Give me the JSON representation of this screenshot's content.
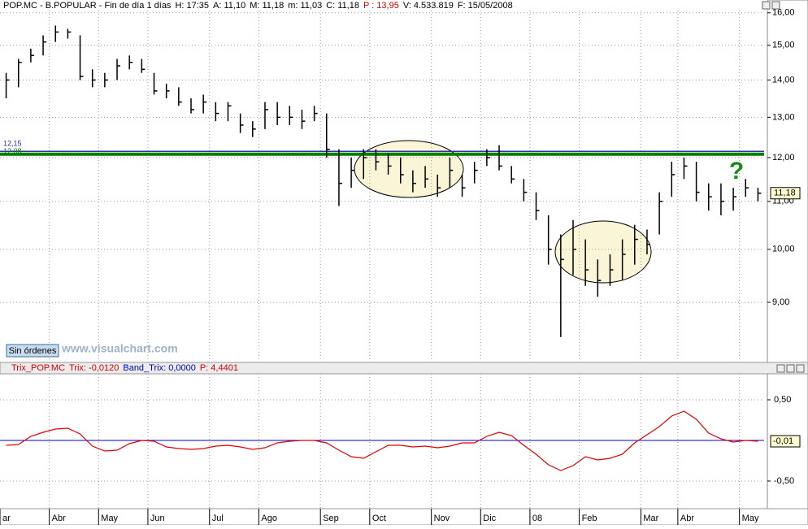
{
  "chart_data": [
    {
      "type": "ohlc",
      "header": [
        "POP.MC - B.POPULAR - Fin de día 1 días",
        "H: 17:35",
        "A: 11,10",
        "M: 11,18",
        "m: 11,03",
        "C: 11,18",
        "P : 13,95",
        "V: 4.533.819",
        "F: 15/05/2008"
      ],
      "categories": [
        "ar",
        null,
        null,
        null,
        "Abr",
        null,
        null,
        null,
        "May",
        null,
        null,
        null,
        "Jun",
        null,
        null,
        null,
        null,
        "Jul",
        null,
        null,
        null,
        "Ago",
        null,
        null,
        null,
        null,
        "Sep",
        null,
        null,
        null,
        "Oct",
        null,
        null,
        null,
        null,
        "Nov",
        null,
        null,
        null,
        "Dic",
        null,
        null,
        null,
        "08",
        null,
        null,
        null,
        "Feb",
        null,
        null,
        null,
        null,
        "Mar",
        null,
        null,
        "Abr",
        null,
        null,
        null,
        null,
        "May",
        null
      ],
      "highs": [
        14.2,
        14.6,
        14.9,
        15.3,
        15.6,
        15.5,
        15.3,
        14.3,
        14.2,
        14.6,
        14.7,
        14.6,
        14.2,
        13.9,
        13.8,
        13.5,
        13.6,
        13.4,
        13.4,
        13.1,
        12.9,
        13.4,
        13.4,
        13.3,
        13.2,
        13.3,
        13.1,
        12.2,
        12.0,
        12.2,
        12.2,
        12.1,
        12.0,
        11.7,
        11.8,
        11.6,
        12.0,
        11.6,
        11.9,
        12.2,
        12.3,
        11.8,
        11.5,
        11.2,
        10.7,
        10.3,
        10.6,
        10.2,
        9.8,
        9.9,
        10.2,
        10.5,
        10.4,
        11.2,
        11.9,
        12.0,
        11.9,
        11.4,
        11.4,
        11.3,
        11.5,
        11.3
      ],
      "lows": [
        13.5,
        13.8,
        14.5,
        14.7,
        15.1,
        15.2,
        14.0,
        13.8,
        13.8,
        14.0,
        14.3,
        14.2,
        13.6,
        13.5,
        13.3,
        13.1,
        13.1,
        12.9,
        12.9,
        12.6,
        12.5,
        12.7,
        12.8,
        12.8,
        12.7,
        12.9,
        12.0,
        10.9,
        11.3,
        11.5,
        11.7,
        11.6,
        11.4,
        11.2,
        11.3,
        11.1,
        11.3,
        11.1,
        11.4,
        11.8,
        11.7,
        11.4,
        11.0,
        10.6,
        9.7,
        8.4,
        9.5,
        9.3,
        9.1,
        9.3,
        9.4,
        9.7,
        9.9,
        10.3,
        11.1,
        11.5,
        11.0,
        10.8,
        10.7,
        10.8,
        11.1,
        11.0
      ],
      "closes": [
        14.0,
        14.5,
        14.7,
        15.1,
        15.4,
        15.4,
        14.1,
        14.0,
        14.0,
        14.4,
        14.5,
        14.3,
        13.7,
        13.7,
        13.4,
        13.2,
        13.4,
        13.1,
        13.3,
        12.8,
        12.7,
        13.2,
        13.0,
        13.0,
        12.9,
        13.1,
        12.2,
        11.4,
        11.7,
        12.0,
        11.9,
        11.8,
        11.6,
        11.4,
        11.5,
        11.3,
        11.7,
        11.3,
        11.7,
        12.0,
        11.8,
        11.5,
        11.2,
        10.8,
        10.0,
        9.8,
        10.0,
        9.6,
        9.4,
        9.6,
        9.9,
        10.2,
        10.1,
        11.0,
        11.6,
        11.8,
        11.2,
        11.1,
        11.0,
        11.1,
        11.3,
        11.18
      ],
      "color": "#000000",
      "log_scale": true,
      "ylim": [
        8,
        16.15
      ],
      "yticks": [
        {
          "value": 9,
          "label": "9,00"
        },
        {
          "value": 10,
          "label": "10,00"
        },
        {
          "value": 11,
          "label": "11,00"
        },
        {
          "value": 12,
          "label": "12,00"
        },
        {
          "value": 13,
          "label": "13,00"
        },
        {
          "value": 14,
          "label": "14,00"
        },
        {
          "value": 15,
          "label": "15,00"
        },
        {
          "value": 16,
          "label": "16,00"
        }
      ],
      "grid": true,
      "levels": [
        {
          "value": 12.15,
          "label": "12,15",
          "color": "#3030a0"
        },
        {
          "value": 12.08,
          "label": "12,08",
          "color": "#008000"
        }
      ],
      "last": {
        "value": 11.18,
        "label": "11,18"
      },
      "annotation": "?",
      "button": "Sin órdenes",
      "watermark": "www.visualchart.com"
    },
    {
      "type": "line",
      "header": [
        "Trix_POP.MC",
        "Trix: -0,0120",
        "Band_Trix: 0,0000",
        "P: 4,4401"
      ],
      "series": [
        {
          "name": "Trix",
          "color": "#e00000",
          "values": [
            -0.06,
            -0.05,
            0.05,
            0.1,
            0.14,
            0.15,
            0.08,
            -0.07,
            -0.13,
            -0.12,
            -0.04,
            0.0,
            -0.01,
            -0.08,
            -0.1,
            -0.11,
            -0.1,
            -0.07,
            -0.06,
            -0.08,
            -0.11,
            -0.09,
            -0.03,
            -0.01,
            0.0,
            0.0,
            -0.03,
            -0.12,
            -0.2,
            -0.22,
            -0.14,
            -0.06,
            -0.06,
            -0.08,
            -0.07,
            -0.09,
            -0.07,
            -0.03,
            -0.03,
            0.05,
            0.1,
            0.06,
            -0.06,
            -0.17,
            -0.3,
            -0.37,
            -0.31,
            -0.2,
            -0.24,
            -0.22,
            -0.17,
            -0.03,
            0.07,
            0.17,
            0.3,
            0.36,
            0.26,
            0.09,
            0.02,
            -0.02,
            0.0,
            -0.01
          ]
        }
      ],
      "band": {
        "value": 0,
        "color": "#0000d0"
      },
      "last": {
        "value": -0.01,
        "label": "-0,01"
      },
      "ylim": [
        -0.84,
        0.82
      ],
      "yticks": [
        {
          "value": -0.5,
          "label": "-0,50"
        },
        {
          "value": 0.5,
          "label": "0,50"
        }
      ],
      "grid": true
    }
  ]
}
